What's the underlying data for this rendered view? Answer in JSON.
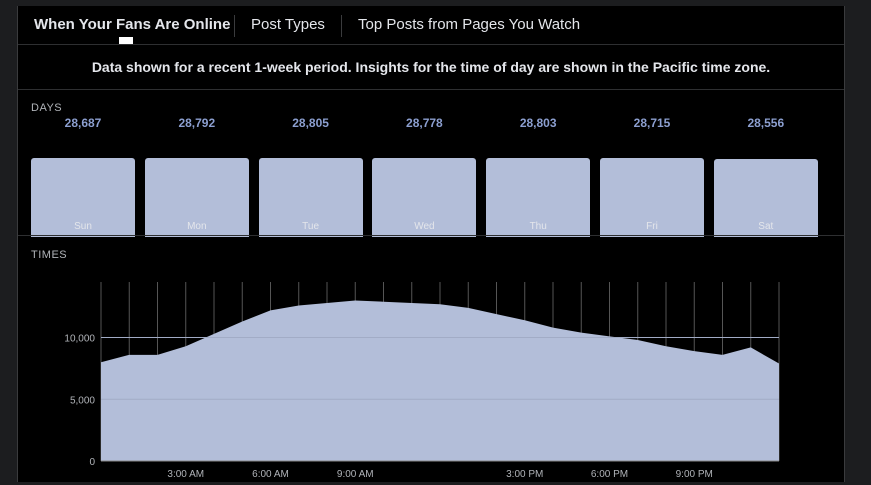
{
  "tabs": [
    {
      "label": "When Your Fans Are Online",
      "active": true
    },
    {
      "label": "Post Types",
      "active": false
    },
    {
      "label": "Top Posts from Pages You Watch",
      "active": false
    }
  ],
  "notice": "Data shown for a recent 1-week period. Insights for the time of day are shown in the Pacific time zone.",
  "days_section": {
    "label": "DAYS"
  },
  "times_section": {
    "label": "TIMES"
  },
  "colors": {
    "bar": "#b3bed9",
    "value_text": "#8c9fd0",
    "area": "#b3bed9"
  },
  "chart_data": [
    {
      "type": "bar",
      "categories": [
        "Sun",
        "Mon",
        "Tue",
        "Wed",
        "Thu",
        "Fri",
        "Sat"
      ],
      "values": [
        28687,
        28792,
        28805,
        28778,
        28803,
        28715,
        28556
      ],
      "value_labels": [
        "28,687",
        "28,792",
        "28,805",
        "28,778",
        "28,803",
        "28,715",
        "28,556"
      ]
    },
    {
      "type": "area",
      "x": [
        0,
        1,
        2,
        3,
        4,
        5,
        6,
        7,
        8,
        9,
        10,
        11,
        12,
        13,
        14,
        15,
        16,
        17,
        18,
        19,
        20,
        21,
        22,
        23
      ],
      "values": [
        8000,
        8600,
        8600,
        9300,
        10300,
        11300,
        12200,
        12600,
        12800,
        13000,
        12900,
        12800,
        12700,
        12400,
        11900,
        11400,
        10800,
        10400,
        10100,
        9800,
        9300,
        8900,
        8600,
        9200
      ],
      "tail_value": 7900,
      "y_ticks": [
        0,
        5000,
        10000
      ],
      "y_tick_labels": [
        "0",
        "5,000",
        "10,000"
      ],
      "ylim": [
        0,
        14500
      ],
      "x_tick_hours": [
        3,
        6,
        9,
        15,
        18,
        21
      ],
      "x_tick_labels": [
        "3:00 AM",
        "6:00 AM",
        "9:00 AM",
        "3:00 PM",
        "6:00 PM",
        "9:00 PM"
      ],
      "grid": true
    }
  ]
}
